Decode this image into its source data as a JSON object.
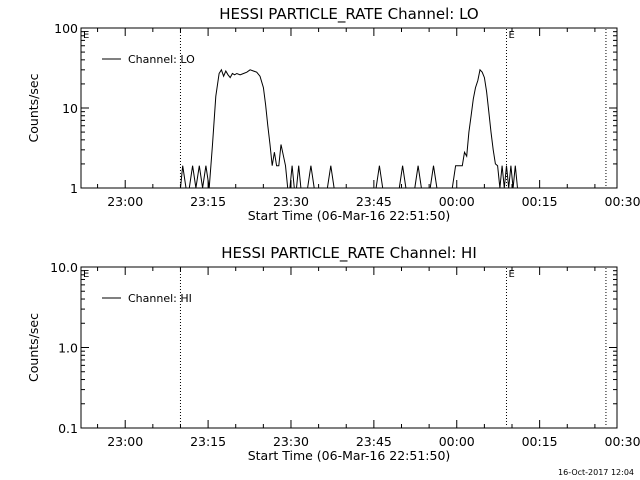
{
  "footer": {
    "timestamp": "16-Oct-2017 12:04"
  },
  "chart_data": [
    {
      "type": "line",
      "title": "HESSI PARTICLE_RATE Channel: LO",
      "xlabel": "Start Time (06-Mar-16 22:51:50)",
      "ylabel": "Counts/sec",
      "yscale": "log",
      "ylim": [
        1,
        100
      ],
      "yticks": [
        {
          "value": 1,
          "label": "1"
        },
        {
          "value": 10,
          "label": "10"
        },
        {
          "value": 100,
          "label": "100"
        }
      ],
      "xlim_minutes": [
        -8,
        89
      ],
      "xticks": [
        {
          "value": 0,
          "label": "23:00"
        },
        {
          "value": 15,
          "label": "23:15"
        },
        {
          "value": 30,
          "label": "23:30"
        },
        {
          "value": 45,
          "label": "23:45"
        },
        {
          "value": 60,
          "label": "00:00"
        },
        {
          "value": 75,
          "label": "00:15"
        },
        {
          "value": 90,
          "label": "00:30"
        }
      ],
      "markers": [
        {
          "x": 10,
          "label": ""
        },
        {
          "x": 69,
          "label": "E"
        },
        {
          "x": 87,
          "label": ""
        }
      ],
      "corner_label": "E",
      "legend": {
        "entries": [
          "Channel: LO"
        ],
        "placement": "top-left"
      },
      "series": [
        {
          "name": "Channel: LO",
          "x": [
            10,
            10.4,
            11,
            11.6,
            12.2,
            12.8,
            13.4,
            14.0,
            14.6,
            15.2,
            15.8,
            16.4,
            17.0,
            17.4,
            17.8,
            18.2,
            18.6,
            19.0,
            19.4,
            19.8,
            20.2,
            20.8,
            21.4,
            22.0,
            22.6,
            23.2,
            23.8,
            24.4,
            25.0,
            25.4,
            25.8,
            26.2,
            26.6,
            27.0,
            27.4,
            27.8,
            28.2,
            28.6,
            29.0,
            29.4,
            29.8,
            30.2,
            30.6,
            31.0,
            31.4,
            31.8,
            32.2,
            32.6,
            33.0,
            33.6,
            34.2,
            34.8,
            35.4,
            36.0,
            36.6,
            37.2,
            37.8,
            40,
            42,
            44,
            45.4,
            46,
            46.6,
            48,
            49.6,
            50.2,
            50.8,
            52.4,
            53.0,
            53.6,
            55.2,
            55.8,
            56.4,
            58,
            59.2,
            59.8,
            60.4,
            61.0,
            61.4,
            61.8,
            62.2,
            62.6,
            63.0,
            63.4,
            63.8,
            64.2,
            64.6,
            65.0,
            65.4,
            65.8,
            66.2,
            66.6,
            67.0,
            67.4,
            67.8,
            68.2,
            68.6,
            69.0,
            69.4,
            69.8,
            70.2,
            70.6,
            71.0,
            71.4,
            71.8,
            72.2,
            72.6,
            73.0
          ],
          "values": [
            1.0,
            1.9,
            1.0,
            1.0,
            1.9,
            1.0,
            1.9,
            1.0,
            1.9,
            1.0,
            3.5,
            14.0,
            27.0,
            30.0,
            25.0,
            29.0,
            26.0,
            24.0,
            27.0,
            26.0,
            27.0,
            26.0,
            27.0,
            28.0,
            30.0,
            29.0,
            28.0,
            25.0,
            18.0,
            11.0,
            6.0,
            3.5,
            1.9,
            2.8,
            1.9,
            1.9,
            3.5,
            2.6,
            1.9,
            1.0,
            1.0,
            1.9,
            1.0,
            1.0,
            1.9,
            1.0,
            1.0,
            1.0,
            1.0,
            1.9,
            1.0,
            1.0,
            1.0,
            1.0,
            1.0,
            1.9,
            1.0,
            1.0,
            1.0,
            1.0,
            1.0,
            1.9,
            1.0,
            1.0,
            1.0,
            1.9,
            1.0,
            1.0,
            1.9,
            1.0,
            1.0,
            1.9,
            1.0,
            1.0,
            1.0,
            1.9,
            1.9,
            1.9,
            2.8,
            2.5,
            5.0,
            8.0,
            13.0,
            18.0,
            22.0,
            30.0,
            28.0,
            24.0,
            16.0,
            9.0,
            5.0,
            3.0,
            2.0,
            1.9,
            1.0,
            1.9,
            1.0,
            1.9,
            1.0,
            1.9,
            1.0,
            1.9,
            1.0,
            1.0,
            1.0,
            1.0,
            1.0,
            1.0
          ]
        }
      ]
    },
    {
      "type": "line",
      "title": "HESSI PARTICLE_RATE Channel: HI",
      "xlabel": "Start Time (06-Mar-16 22:51:50)",
      "ylabel": "Counts/sec",
      "yscale": "log",
      "ylim": [
        0.1,
        10
      ],
      "yticks": [
        {
          "value": 0.1,
          "label": "0.1"
        },
        {
          "value": 1,
          "label": "1.0"
        },
        {
          "value": 10,
          "label": "10.0"
        }
      ],
      "xlim_minutes": [
        -8,
        89
      ],
      "xticks": [
        {
          "value": 0,
          "label": "23:00"
        },
        {
          "value": 15,
          "label": "23:15"
        },
        {
          "value": 30,
          "label": "23:30"
        },
        {
          "value": 45,
          "label": "23:45"
        },
        {
          "value": 60,
          "label": "00:00"
        },
        {
          "value": 75,
          "label": "00:15"
        },
        {
          "value": 90,
          "label": "00:30"
        }
      ],
      "markers": [
        {
          "x": 10,
          "label": ""
        },
        {
          "x": 69,
          "label": "E"
        },
        {
          "x": 87,
          "label": ""
        }
      ],
      "corner_label": "E",
      "legend": {
        "entries": [
          "Channel: HI"
        ],
        "placement": "top-left"
      },
      "series": [
        {
          "name": "Channel: HI",
          "x": [],
          "values": []
        }
      ]
    }
  ]
}
